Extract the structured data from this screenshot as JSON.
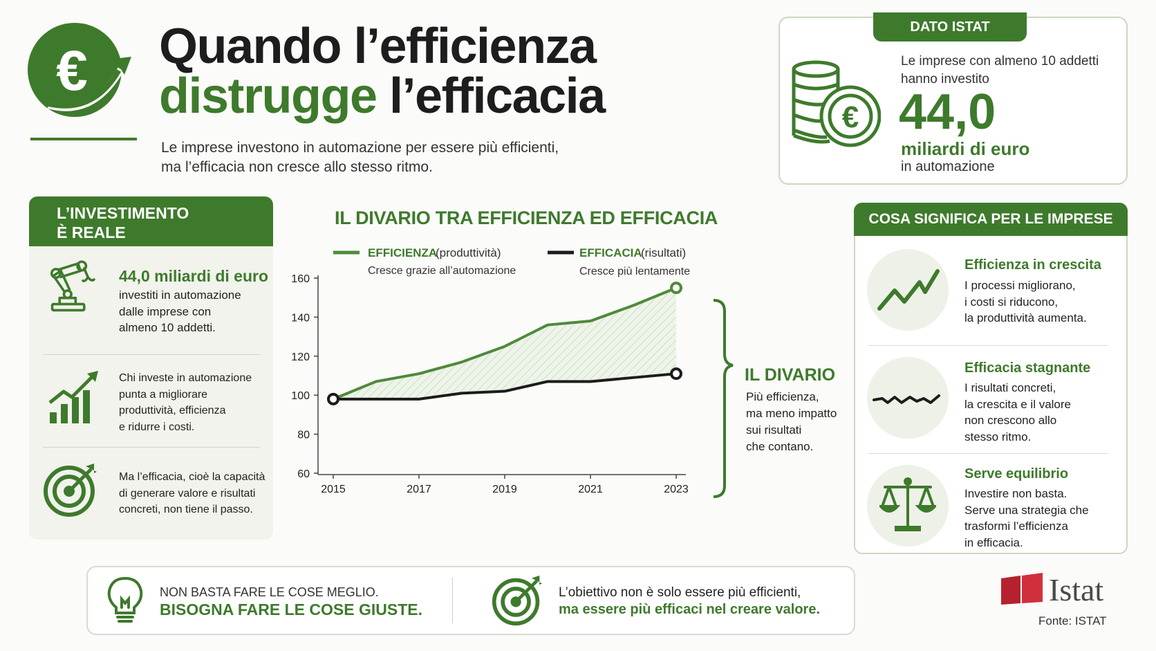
{
  "header": {
    "title_line1": "Quando l’efficienza",
    "title_line2_green": "distrugge",
    "title_line2_dark": " l’efficacia",
    "subtitle_line1": "Le imprese investono in automazione per essere più efficienti,",
    "subtitle_line2": "ma l’efficacia non cresce allo stesso ritmo.",
    "logo_icon": "euro-growth-icon"
  },
  "istat_box": {
    "tab": "DATO ISTAT",
    "intro_line1": "Le imprese con almeno 10 addetti",
    "intro_line2": "hanno investito",
    "big_number": "44,0",
    "unit": "miliardi di euro",
    "tail": "in automazione",
    "icon": "coins-euro-icon"
  },
  "left_panel": {
    "heading_line1": "L’INVESTIMENTO",
    "heading_line2": "È REALE",
    "items": [
      {
        "icon": "robot-arm-icon",
        "title": "44,0 miliardi di euro",
        "lines": [
          "investiti in automazione",
          "dalle imprese con",
          "almeno 10 addetti."
        ]
      },
      {
        "icon": "growth-bars-icon",
        "lines": [
          "Chi investe in automazione",
          "punta a migliorare",
          "produttività, efficienza",
          "e ridurre i costi."
        ]
      },
      {
        "icon": "target-icon",
        "lines": [
          "Ma l’efficacia, cioè la capacità",
          "di generare valore e risultati",
          "concreti, non tiene il passo."
        ]
      }
    ]
  },
  "chart_data": {
    "type": "line",
    "title": "IL DIVARIO TRA EFFICIENZA ED EFFICACIA",
    "x_ticks": [
      "2015",
      "2017",
      "2019",
      "2021",
      "2023"
    ],
    "y_ticks": [
      "60",
      "80",
      "100",
      "120",
      "140",
      "160"
    ],
    "ylim": [
      60,
      160
    ],
    "xlim": [
      2015,
      2023
    ],
    "series": [
      {
        "name": "EFFICIENZA",
        "name_suffix": "(produttività)",
        "description": "Cresce grazie all’automazione",
        "color": "#4f8a3a",
        "x": [
          2015,
          2016,
          2017,
          2018,
          2019,
          2020,
          2021,
          2022,
          2023
        ],
        "y": [
          98,
          107,
          111,
          117,
          125,
          136,
          138,
          146,
          155
        ]
      },
      {
        "name": "EFFICACIA",
        "name_suffix": "(risultati)",
        "description": "Cresce più lentamente",
        "color": "#1c1c1c",
        "x": [
          2015,
          2016,
          2017,
          2018,
          2019,
          2020,
          2021,
          2022,
          2023
        ],
        "y": [
          98,
          98,
          98,
          101,
          102,
          107,
          107,
          109,
          111
        ]
      }
    ],
    "legend_position": "top",
    "grid": false
  },
  "divario": {
    "title": "IL DIVARIO",
    "lines": [
      "Più efficienza,",
      "ma meno impatto",
      "sui risultati",
      "che contano."
    ]
  },
  "right_panel": {
    "heading": "COSA SIGNIFICA PER LE IMPRESE",
    "items": [
      {
        "icon": "rising-line-icon",
        "title": "Efficienza in crescita",
        "lines": [
          "I processi migliorano,",
          "i costi si riducono,",
          "la produttività aumenta."
        ]
      },
      {
        "icon": "flat-line-icon",
        "title": "Efficacia stagnante",
        "lines": [
          "I risultati concreti,",
          "la crescita e il valore",
          "non crescono allo",
          "stesso ritmo."
        ]
      },
      {
        "icon": "scales-icon",
        "title": "Serve equilibrio",
        "lines": [
          "Investire non basta.",
          "Serve una strategia che",
          "trasformi l’efficienza",
          "in efficacia."
        ]
      }
    ]
  },
  "bottom": {
    "left_line1": "NON BASTA FARE LE COSE MEGLIO.",
    "left_line2": "BISOGNA FARE LE COSE GIUSTE.",
    "right_line1": "L’obiettivo non è solo essere più efficienti,",
    "right_line2": "ma essere più efficaci nel creare valore.",
    "left_icon": "lightbulb-icon",
    "right_icon": "target-icon"
  },
  "source": {
    "logo_text": "Istat",
    "fonte": "Fonte: ISTAT"
  },
  "colors": {
    "brand_green": "#3e7a2c",
    "light_green": "#4f8a3a",
    "panel_bg": "#f1f3ec",
    "istat_red": "#b5222d"
  }
}
